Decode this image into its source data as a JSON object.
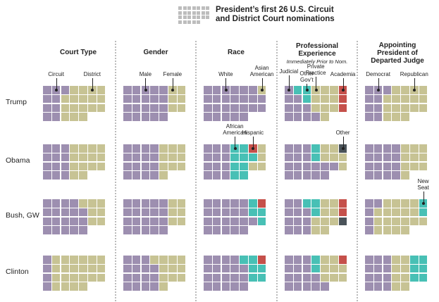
{
  "title": {
    "line1": "President’s first 26 U.S. Circuit",
    "line2": "and District Court nominations"
  },
  "colors": {
    "P": "#9d8fb0",
    "O": "#c7c394",
    "T": "#48c0b5",
    "R": "#c5504a",
    "D": "#4a5359"
  },
  "chart_data": {
    "type": "waffle",
    "title": "President’s first 26 U.S. Circuit and District Court nominations",
    "columns": [
      {
        "name": "Court Type",
        "subtitle": "",
        "categories": {
          "P": "Circuit",
          "O": "District"
        }
      },
      {
        "name": "Gender",
        "subtitle": "",
        "categories": {
          "P": "Male",
          "O": "Female"
        }
      },
      {
        "name": "Race",
        "subtitle": "",
        "categories": {
          "P": "White",
          "O": "Asian American",
          "T": "African American",
          "R": "Hispanic"
        }
      },
      {
        "name": "Professional Experience",
        "subtitle": "Immediately Prior to Nom.",
        "categories": {
          "P": "Judicial",
          "T": "Other Gov’t",
          "O": "Private Practice",
          "R": "Academia",
          "D": "Other"
        }
      },
      {
        "name": "Appointing President of Departed Judge",
        "subtitle": "",
        "categories": {
          "P": "Democrat",
          "O": "Republican",
          "T": "New Seat"
        }
      }
    ],
    "rows": [
      {
        "president": "Trump",
        "grids": [
          [
            "PPPOOOO",
            "PPOOOOO",
            "PPOOOOO",
            "PPOOO"
          ],
          [
            "PPPPPOO",
            "PPPPPOO",
            "PPPPPOO",
            "PPPPP"
          ],
          [
            "PPPPPPO",
            "PPPPPPP",
            "PPPPPPP",
            "PPPPP"
          ],
          [
            "PTTOOOR",
            "PPTOOOR",
            "PPPOOOR",
            "PPPPO"
          ],
          [
            "PPPOOOO",
            "PPOOOOO",
            "PPOOOOO",
            "PPOOO"
          ]
        ]
      },
      {
        "president": "Obama",
        "grids": [
          [
            "PPPOOOO",
            "PPPOOOO",
            "PPPOOOO",
            "PPPOO"
          ],
          [
            "PPPPOOO",
            "PPPPOOO",
            "PPPPOOO",
            "PPPPO"
          ],
          [
            "PPPTTRO",
            "PPPTTTO",
            "PPPTTOO",
            "PPPTT"
          ],
          [
            "PPPTOOD",
            "PPPTOOO",
            "PPPPPPO",
            "PPPPP"
          ],
          [
            "PPPPOOO",
            "PPPPOOO",
            "PPPPOOO",
            "PPPPO"
          ]
        ]
      },
      {
        "president": "Bush, GW",
        "grids": [
          [
            "PPPPOOO",
            "PPPPPOO",
            "PPPPPOO",
            "PPPPP"
          ],
          [
            "PPPPPOO",
            "PPPPPOO",
            "PPPPPOO",
            "PPPPP"
          ],
          [
            "PPPPPTR",
            "PPPPPTT",
            "PPPPPPT",
            "PPPPP"
          ],
          [
            "PPTTOOR",
            "PPPTOOR",
            "PPPOOOD",
            "PPPOO"
          ],
          [
            "PPOOOOT",
            "POOOOOT",
            "POOOOOO",
            "POOOO"
          ]
        ]
      },
      {
        "president": "Clinton",
        "grids": [
          [
            "POOOOOO",
            "POOOOOO",
            "POOOOOO",
            "POOOO"
          ],
          [
            "PPPOOOO",
            "PPPPOOO",
            "PPPPOOO",
            "PPPPO"
          ],
          [
            "PPPPTTR",
            "PPPPPTT",
            "PPPPPTT",
            "PPPPP"
          ],
          [
            "PPPTOOR",
            "PPPTOOO",
            "PPPPOOO",
            "PPPPP"
          ],
          [
            "PPPOOTT",
            "PPPOOTT",
            "PPPOOTT",
            "PPPOO"
          ]
        ]
      }
    ]
  },
  "annotations": [
    {
      "text": "Circuit",
      "col": 0,
      "row": 0,
      "cell": 1
    },
    {
      "text": "District",
      "col": 0,
      "row": 0,
      "cell": 5
    },
    {
      "text": "Male",
      "col": 1,
      "row": 0,
      "cell": 2
    },
    {
      "text": "Female",
      "col": 1,
      "row": 0,
      "cell": 5
    },
    {
      "text": "White",
      "col": 2,
      "row": 0,
      "cell": 2
    },
    {
      "text": "Asian\nAmerican",
      "col": 2,
      "row": 0,
      "cell": 6
    },
    {
      "text": "Judicial",
      "col": 3,
      "row": 0,
      "cell": 0
    },
    {
      "text": "Other\nGov’t",
      "col": 3,
      "row": 0,
      "cell": 2
    },
    {
      "text": "Private\nPractice",
      "col": 3,
      "row": 0,
      "cell": 3
    },
    {
      "text": "Academia",
      "col": 3,
      "row": 0,
      "cell": 6
    },
    {
      "text": "Democrat",
      "col": 4,
      "row": 0,
      "cell": 1
    },
    {
      "text": "Republican",
      "col": 4,
      "row": 0,
      "cell": 5
    },
    {
      "text": "African\nAmerican",
      "col": 2,
      "row": 1,
      "cell": 3
    },
    {
      "text": "Hispanic",
      "col": 2,
      "row": 1,
      "cell": 5
    },
    {
      "text": "Other",
      "col": 3,
      "row": 1,
      "cell": 6
    },
    {
      "text": "New\nSeat",
      "col": 4,
      "row": 2,
      "cell": 6
    }
  ]
}
